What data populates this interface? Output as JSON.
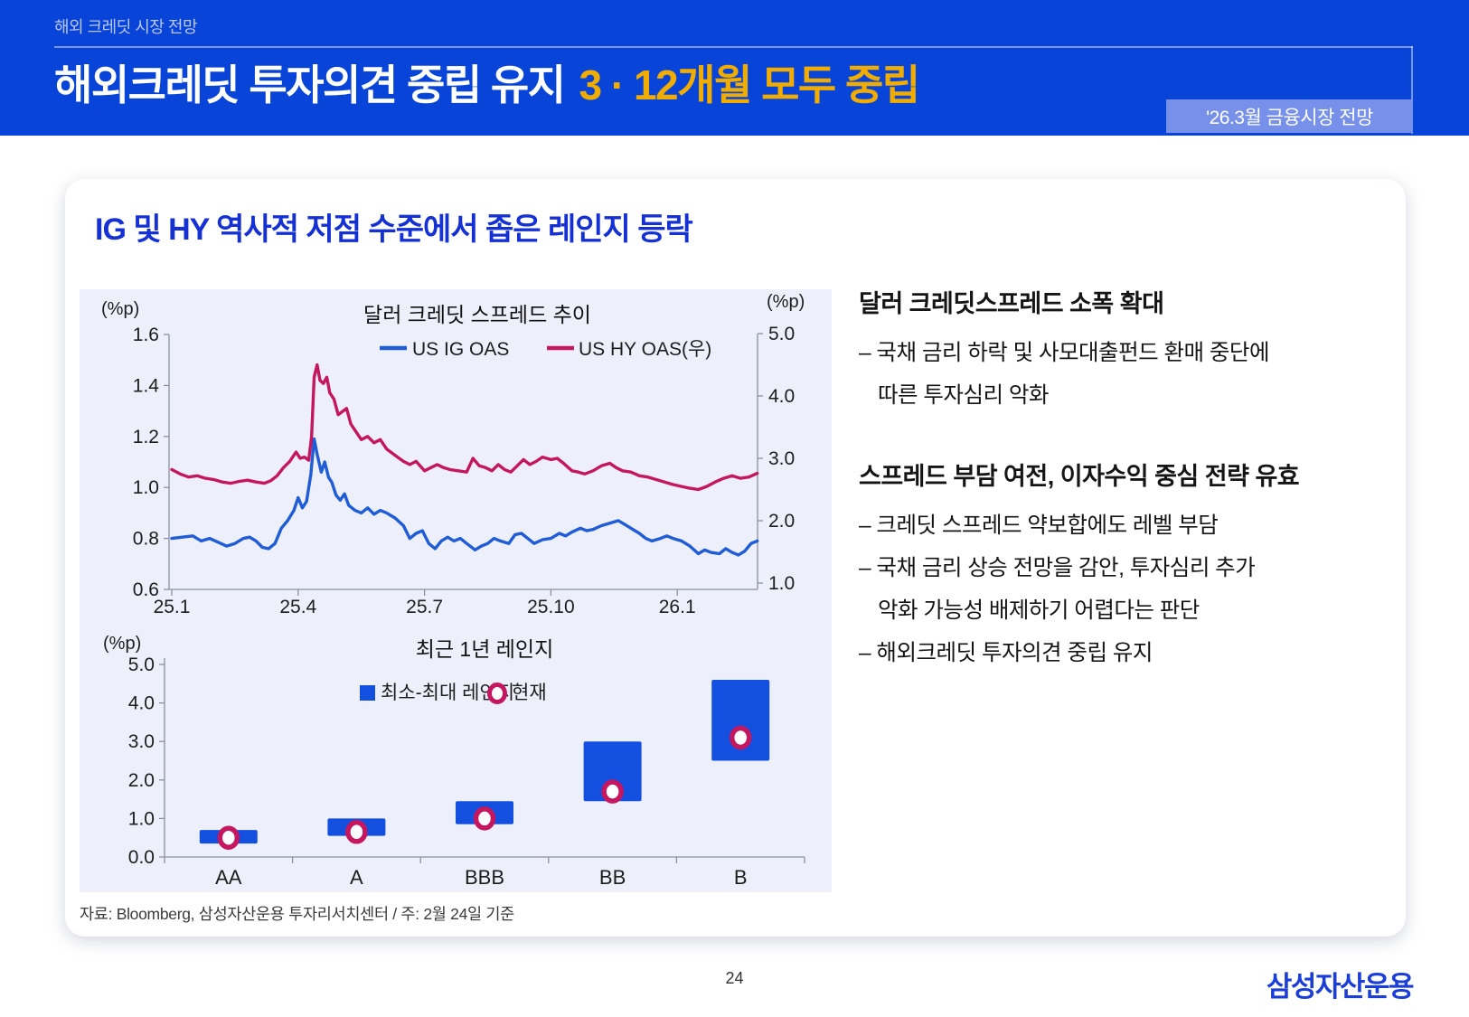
{
  "header": {
    "eyebrow": "해외 크레딧 시장 전망",
    "title_main": "해외크레딧 투자의견 중립 유지",
    "title_accent": "3 · 12개월 모두 중립",
    "badge": "'26.3월 금융시장 전망"
  },
  "card": {
    "title": "IG 및 HY 역사적 저점 수준에서 좁은 레인지 등락",
    "source_note": "자료: Bloomberg, 삼성자산운용 투자리서치센터 / 주: 2월 24일 기준"
  },
  "commentary": {
    "blocks": [
      {
        "heading": "달러 크레딧스프레드 소폭 확대",
        "lines": [
          {
            "text": "– 국채 금리 하락 및 사모대출펀드 환매 중단에",
            "cont": false
          },
          {
            "text": "따른 투자심리 악화",
            "cont": true
          }
        ]
      },
      {
        "heading": "스프레드 부담 여전, 이자수익 중심 전략 유효",
        "lines": [
          {
            "text": "– 크레딧 스프레드 약보합에도 레벨 부담",
            "cont": false
          },
          {
            "text": "– 국채 금리 상승 전망을 감안, 투자심리 추가",
            "cont": false
          },
          {
            "text": "악화 가능성 배제하기 어렵다는 판단",
            "cont": true
          },
          {
            "text": "– 해외크레딧 투자의견 중립 유지",
            "cont": false
          }
        ]
      }
    ]
  },
  "chart_data": [
    {
      "type": "line",
      "title": "달러 크레딧 스프레드 추이",
      "unit_left": "(%p)",
      "unit_right": "(%p)",
      "x_ticks": [
        "25.1",
        "25.4",
        "25.7",
        "25.10",
        "26.1"
      ],
      "x_tick_months": [
        0,
        3,
        6,
        9,
        12
      ],
      "x_range": [
        0,
        13.9
      ],
      "left_axis": {
        "min": 0.6,
        "max": 1.6,
        "ticks": [
          1.6,
          1.4,
          1.2,
          1.0,
          0.8,
          0.6
        ]
      },
      "right_axis": {
        "min": 1.0,
        "max": 5.0,
        "ticks": [
          5.0,
          4.0,
          3.0,
          2.0,
          1.0
        ]
      },
      "series": [
        {
          "name": "US IG OAS",
          "axis": "left",
          "color": "#1F5CD6",
          "x": [
            0,
            0.25,
            0.5,
            0.7,
            0.9,
            1.1,
            1.3,
            1.5,
            1.7,
            1.85,
            2.0,
            2.15,
            2.3,
            2.45,
            2.6,
            2.75,
            2.9,
            3.0,
            3.1,
            3.2,
            3.3,
            3.38,
            3.45,
            3.55,
            3.63,
            3.72,
            3.8,
            3.9,
            4.0,
            4.1,
            4.2,
            4.35,
            4.5,
            4.65,
            4.8,
            4.95,
            5.1,
            5.3,
            5.5,
            5.65,
            5.8,
            5.95,
            6.1,
            6.25,
            6.4,
            6.55,
            6.7,
            6.85,
            7.0,
            7.2,
            7.35,
            7.5,
            7.65,
            7.8,
            8.0,
            8.15,
            8.3,
            8.45,
            8.6,
            8.8,
            9.0,
            9.2,
            9.35,
            9.5,
            9.7,
            9.85,
            10.0,
            10.2,
            10.4,
            10.6,
            10.75,
            10.9,
            11.1,
            11.25,
            11.4,
            11.6,
            11.75,
            11.9,
            12.1,
            12.3,
            12.5,
            12.65,
            12.8,
            13.0,
            13.15,
            13.3,
            13.45,
            13.6,
            13.75,
            13.9
          ],
          "y": [
            0.8,
            0.805,
            0.81,
            0.79,
            0.8,
            0.785,
            0.77,
            0.78,
            0.8,
            0.805,
            0.79,
            0.765,
            0.76,
            0.78,
            0.84,
            0.87,
            0.91,
            0.96,
            0.92,
            0.945,
            1.05,
            1.19,
            1.13,
            1.06,
            1.1,
            1.04,
            1.02,
            0.97,
            0.95,
            0.975,
            0.93,
            0.91,
            0.9,
            0.92,
            0.895,
            0.91,
            0.9,
            0.88,
            0.85,
            0.8,
            0.82,
            0.83,
            0.78,
            0.76,
            0.79,
            0.805,
            0.79,
            0.8,
            0.78,
            0.755,
            0.77,
            0.78,
            0.8,
            0.79,
            0.78,
            0.815,
            0.82,
            0.8,
            0.78,
            0.795,
            0.8,
            0.82,
            0.81,
            0.825,
            0.84,
            0.83,
            0.835,
            0.85,
            0.86,
            0.87,
            0.855,
            0.84,
            0.82,
            0.8,
            0.79,
            0.8,
            0.81,
            0.8,
            0.79,
            0.77,
            0.74,
            0.755,
            0.745,
            0.74,
            0.76,
            0.745,
            0.735,
            0.75,
            0.78,
            0.79
          ]
        },
        {
          "name": "US HY OAS(우)",
          "axis": "right",
          "color": "#C4175F",
          "x": [
            0,
            0.2,
            0.4,
            0.6,
            0.8,
            1.0,
            1.2,
            1.4,
            1.6,
            1.8,
            2.0,
            2.2,
            2.35,
            2.5,
            2.65,
            2.8,
            2.95,
            3.05,
            3.15,
            3.25,
            3.32,
            3.38,
            3.45,
            3.52,
            3.6,
            3.68,
            3.75,
            3.85,
            3.95,
            4.05,
            4.15,
            4.25,
            4.35,
            4.5,
            4.65,
            4.8,
            4.95,
            5.1,
            5.3,
            5.5,
            5.65,
            5.8,
            6.0,
            6.15,
            6.3,
            6.45,
            6.6,
            6.8,
            7.0,
            7.15,
            7.3,
            7.45,
            7.6,
            7.75,
            7.9,
            8.05,
            8.2,
            8.35,
            8.5,
            8.65,
            8.8,
            9.0,
            9.15,
            9.3,
            9.5,
            9.65,
            9.8,
            10.0,
            10.2,
            10.4,
            10.55,
            10.7,
            10.9,
            11.1,
            11.3,
            11.5,
            11.7,
            11.9,
            12.1,
            12.3,
            12.5,
            12.7,
            12.9,
            13.1,
            13.3,
            13.5,
            13.7,
            13.9
          ],
          "y": [
            2.82,
            2.75,
            2.7,
            2.72,
            2.68,
            2.66,
            2.62,
            2.6,
            2.63,
            2.65,
            2.62,
            2.6,
            2.64,
            2.72,
            2.85,
            2.95,
            3.1,
            3.0,
            3.02,
            2.97,
            3.35,
            4.3,
            4.5,
            4.25,
            4.2,
            4.3,
            4.05,
            3.95,
            3.7,
            3.75,
            3.8,
            3.55,
            3.45,
            3.3,
            3.35,
            3.25,
            3.3,
            3.15,
            3.05,
            2.95,
            2.9,
            2.95,
            2.8,
            2.85,
            2.9,
            2.85,
            2.82,
            2.8,
            2.78,
            3.0,
            2.88,
            2.85,
            2.8,
            2.9,
            2.82,
            2.78,
            2.88,
            2.98,
            2.9,
            2.95,
            3.02,
            2.98,
            3.0,
            2.92,
            2.8,
            2.78,
            2.75,
            2.8,
            2.88,
            2.92,
            2.85,
            2.8,
            2.78,
            2.72,
            2.7,
            2.66,
            2.62,
            2.58,
            2.55,
            2.52,
            2.5,
            2.55,
            2.62,
            2.68,
            2.72,
            2.68,
            2.7,
            2.76
          ]
        }
      ]
    },
    {
      "type": "range_bar",
      "title": "최근 1년 레인지",
      "unit": "(%p)",
      "categories": [
        "AA",
        "A",
        "BBB",
        "BB",
        "B"
      ],
      "range_min": [
        0.35,
        0.55,
        0.85,
        1.45,
        2.5
      ],
      "range_max": [
        0.7,
        1.0,
        1.45,
        3.0,
        4.6
      ],
      "current": [
        0.5,
        0.65,
        1.0,
        1.7,
        3.1
      ],
      "ylim": [
        0,
        5
      ],
      "y_ticks": [
        5.0,
        4.0,
        3.0,
        2.0,
        1.0,
        0.0
      ],
      "legend": [
        {
          "label": "최소-최대 레인지",
          "marker": "square",
          "color": "#1450E0"
        },
        {
          "label": "현재",
          "marker": "ring",
          "color": "#C4175F"
        }
      ]
    }
  ],
  "footer": {
    "page_number": "24",
    "logo_text": "삼성자산운용"
  },
  "colors": {
    "header_blue": "#0844D8",
    "accent_yellow": "#F0AD00",
    "badge_blue": "#7791EB",
    "card_title_blue": "#1531D4",
    "panel_bg": "#EDF0FA",
    "ig_line_blue": "#1F5CD6",
    "hy_line_crimson": "#C4175F",
    "bar_blue": "#1450E0",
    "marker_ring_crimson": "#C4175F",
    "logo_blue": "#1C3ED8"
  }
}
